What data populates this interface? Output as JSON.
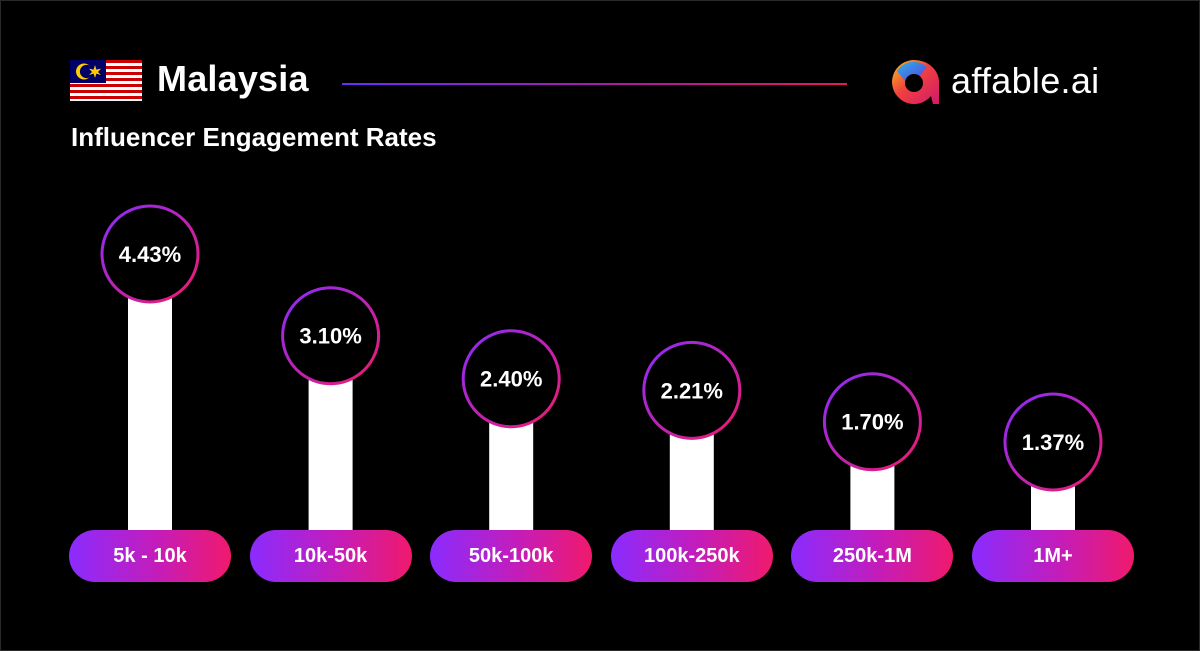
{
  "header": {
    "country": "Malaysia",
    "brand": "affable.ai",
    "subtitle": "Influencer Engagement Rates"
  },
  "icons": {
    "flag": "malaysia-flag-icon",
    "logo": "affable-logo-icon"
  },
  "colors": {
    "background": "#000000",
    "bar": "#ffffff",
    "accent_start": "#8a2cff",
    "accent_end": "#f01a6c"
  },
  "chart_data": {
    "type": "bar",
    "categories": [
      "5k - 10k",
      "10k-50k",
      "50k-100k",
      "100k-250k",
      "250k-1M",
      "1M+"
    ],
    "values": [
      4.43,
      3.1,
      2.4,
      2.21,
      1.7,
      1.37
    ],
    "value_labels": [
      "4.43%",
      "3.10%",
      "2.40%",
      "2.21%",
      "1.70%",
      "1.37%"
    ],
    "title": "Influencer Engagement Rates",
    "xlabel": "",
    "ylabel": "",
    "grid": false
  }
}
